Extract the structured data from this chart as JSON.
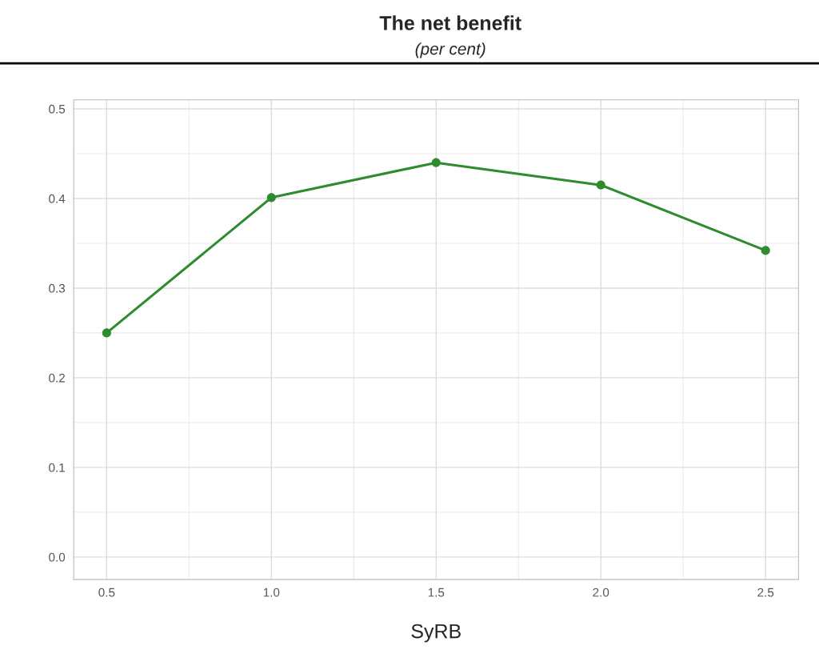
{
  "chart_data": {
    "type": "line",
    "title": "The net benefit",
    "subtitle": "(per cent)",
    "xlabel": "SyRB",
    "x": [
      0.5,
      1.0,
      1.5,
      2.0,
      2.5
    ],
    "series": [
      {
        "color": "#2e8b2e",
        "values": [
          0.25,
          0.401,
          0.44,
          0.415,
          0.342
        ]
      }
    ],
    "xlim": [
      0.4,
      2.6
    ],
    "xticks": [
      {
        "value": 0.5,
        "label": "0.5"
      },
      {
        "value": 1.0,
        "label": "1.0"
      },
      {
        "value": 1.5,
        "label": "1.5"
      },
      {
        "value": 2.0,
        "label": "2.0"
      },
      {
        "value": 2.5,
        "label": "2.5"
      }
    ],
    "ylim": [
      -0.025,
      0.51
    ],
    "yticks": [
      {
        "value": 0.0,
        "label": "0.0"
      },
      {
        "value": 0.1,
        "label": "0.1"
      },
      {
        "value": 0.2,
        "label": "0.2"
      },
      {
        "value": 0.3,
        "label": "0.3"
      },
      {
        "value": 0.4,
        "label": "0.4"
      },
      {
        "value": 0.5,
        "label": "0.5"
      }
    ],
    "grid": true,
    "marker": "circle",
    "line_style": "solid"
  }
}
